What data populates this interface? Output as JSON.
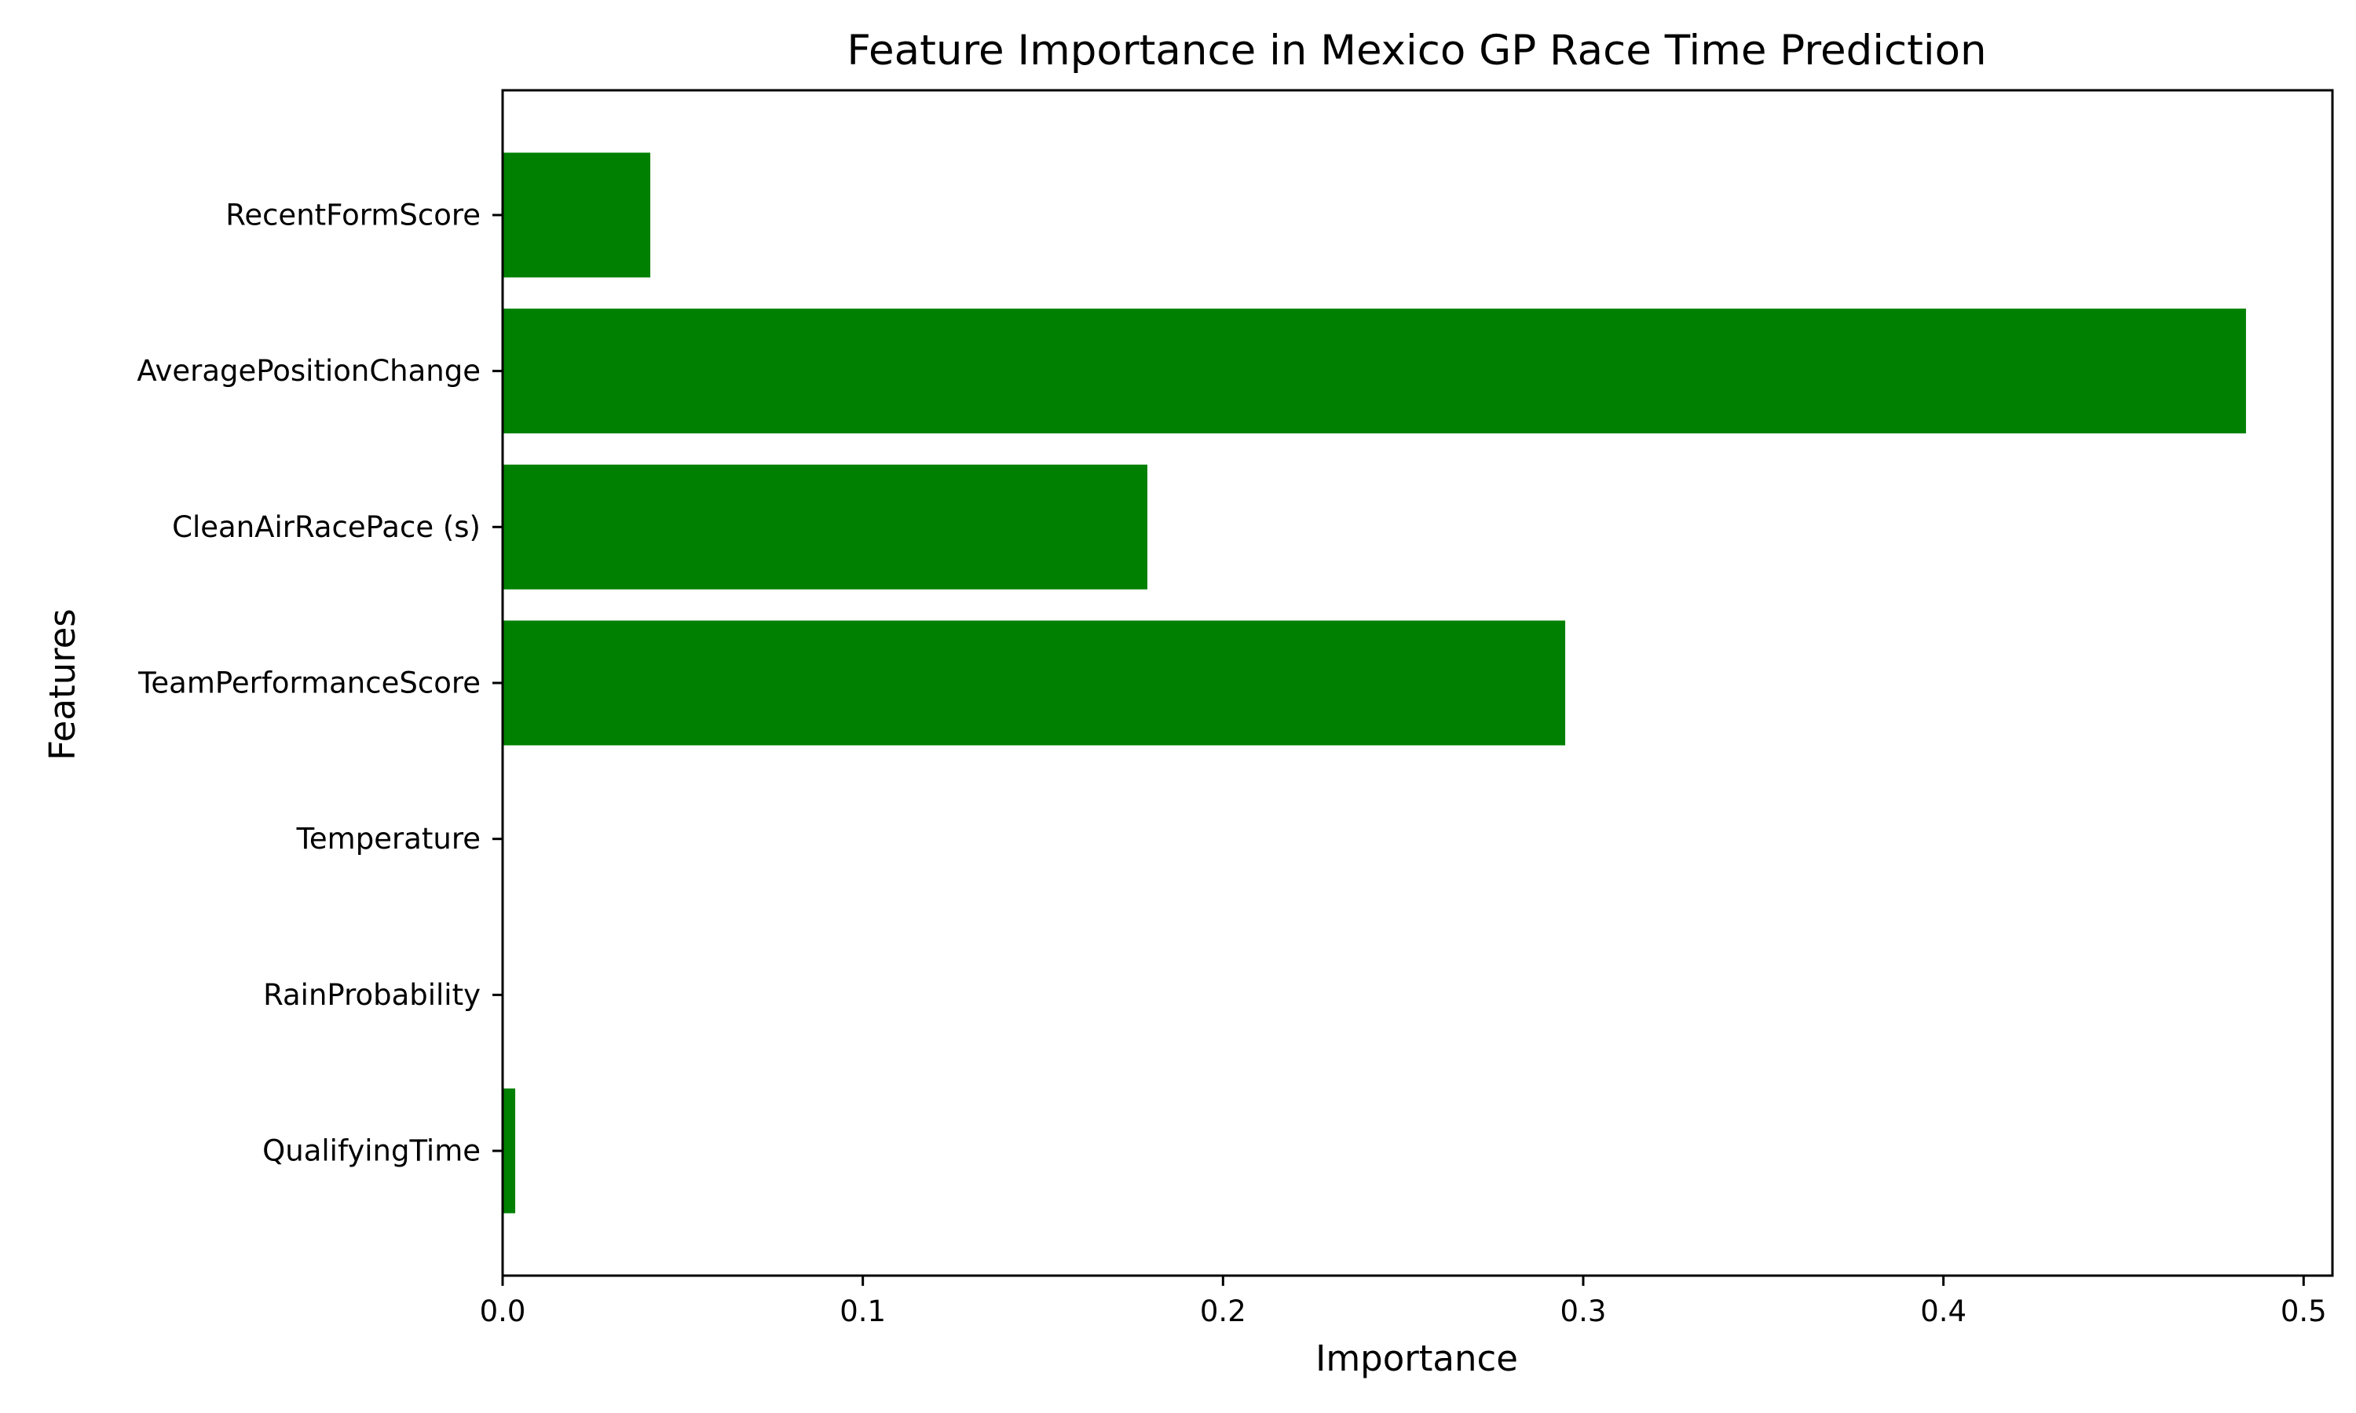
{
  "chart_data": {
    "type": "bar",
    "orientation": "horizontal",
    "title": "Feature Importance in Mexico GP Race Time Prediction",
    "xlabel": "Importance",
    "ylabel": "Features",
    "categories": [
      "QualifyingTime",
      "RainProbability",
      "Temperature",
      "TeamPerformanceScore",
      "CleanAirRacePace (s)",
      "AveragePositionChange",
      "RecentFormScore"
    ],
    "values": [
      0.0035,
      0.0,
      0.0,
      0.295,
      0.179,
      0.484,
      0.041
    ],
    "xlim": [
      0,
      0.508
    ],
    "xticks": [
      0.0,
      0.1,
      0.2,
      0.3,
      0.4,
      0.5
    ],
    "xtick_labels": [
      "0.0",
      "0.1",
      "0.2",
      "0.3",
      "0.4",
      "0.5"
    ],
    "bar_color": "#008000",
    "grid": false,
    "legend": "none"
  }
}
